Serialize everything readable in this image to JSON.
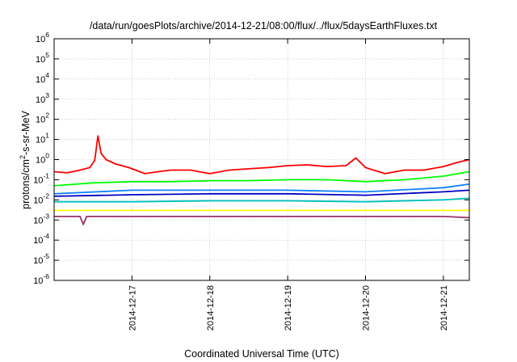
{
  "chart_data": {
    "type": "line",
    "title": "/data/run/goesPlots/archive/2014-12-21/08:00/flux/../flux/5daysEarthFluxes.txt",
    "xlabel": "Coordinated Universal Time (UTC)",
    "ylabel_parts": [
      "protons/cm",
      "2",
      "-s-sr-MeV"
    ],
    "y_scale": "log",
    "y_exponent_range": [
      -6,
      6
    ],
    "y_tick_exponents": [
      -6,
      -5,
      -4,
      -3,
      -2,
      -1,
      0,
      1,
      2,
      3,
      4,
      5,
      6
    ],
    "y_tick_base": "10",
    "x_range": [
      "2014-12-16T00:00",
      "2014-12-21T08:00"
    ],
    "x_ticks": [
      "2014-12-17",
      "2014-12-18",
      "2014-12-19",
      "2014-12-20",
      "2014-12-21"
    ],
    "grid": true,
    "legend": "none",
    "series": [
      {
        "color": "#ff0000",
        "points": [
          [
            "2014-12-16T00:00",
            0.25
          ],
          [
            "2014-12-16T04:00",
            0.22
          ],
          [
            "2014-12-16T08:00",
            0.3
          ],
          [
            "2014-12-16T11:00",
            0.4
          ],
          [
            "2014-12-16T12:30",
            0.9
          ],
          [
            "2014-12-16T13:30",
            15
          ],
          [
            "2014-12-16T14:30",
            2.0
          ],
          [
            "2014-12-16T16:00",
            1.0
          ],
          [
            "2014-12-16T19:00",
            0.6
          ],
          [
            "2014-12-16T23:00",
            0.4
          ],
          [
            "2014-12-17T04:00",
            0.2
          ],
          [
            "2014-12-17T08:00",
            0.25
          ],
          [
            "2014-12-17T12:00",
            0.3
          ],
          [
            "2014-12-17T18:00",
            0.3
          ],
          [
            "2014-12-18T00:00",
            0.2
          ],
          [
            "2014-12-18T06:00",
            0.3
          ],
          [
            "2014-12-18T12:00",
            0.35
          ],
          [
            "2014-12-18T18:00",
            0.4
          ],
          [
            "2014-12-19T00:00",
            0.5
          ],
          [
            "2014-12-19T06:00",
            0.55
          ],
          [
            "2014-12-19T12:00",
            0.45
          ],
          [
            "2014-12-19T18:00",
            0.5
          ],
          [
            "2014-12-19T21:00",
            1.2
          ],
          [
            "2014-12-20T00:00",
            0.4
          ],
          [
            "2014-12-20T06:00",
            0.2
          ],
          [
            "2014-12-20T12:00",
            0.3
          ],
          [
            "2014-12-20T18:00",
            0.3
          ],
          [
            "2014-12-21T00:00",
            0.45
          ],
          [
            "2014-12-21T04:00",
            0.7
          ],
          [
            "2014-12-21T08:00",
            1.0
          ]
        ]
      },
      {
        "color": "#00ff00",
        "points": [
          [
            "2014-12-16T00:00",
            0.05
          ],
          [
            "2014-12-16T12:00",
            0.07
          ],
          [
            "2014-12-17T00:00",
            0.08
          ],
          [
            "2014-12-17T12:00",
            0.08
          ],
          [
            "2014-12-18T00:00",
            0.09
          ],
          [
            "2014-12-18T12:00",
            0.09
          ],
          [
            "2014-12-19T00:00",
            0.1
          ],
          [
            "2014-12-19T12:00",
            0.1
          ],
          [
            "2014-12-20T00:00",
            0.08
          ],
          [
            "2014-12-20T12:00",
            0.1
          ],
          [
            "2014-12-21T00:00",
            0.15
          ],
          [
            "2014-12-21T08:00",
            0.25
          ]
        ]
      },
      {
        "color": "#00c0c0",
        "points": [
          [
            "2014-12-16T00:00",
            0.008
          ],
          [
            "2014-12-17T00:00",
            0.008
          ],
          [
            "2014-12-18T00:00",
            0.009
          ],
          [
            "2014-12-19T00:00",
            0.009
          ],
          [
            "2014-12-20T00:00",
            0.008
          ],
          [
            "2014-12-21T00:00",
            0.01
          ],
          [
            "2014-12-21T08:00",
            0.012
          ]
        ]
      },
      {
        "color": "#1080ff",
        "points": [
          [
            "2014-12-16T00:00",
            0.02
          ],
          [
            "2014-12-17T00:00",
            0.03
          ],
          [
            "2014-12-18T00:00",
            0.03
          ],
          [
            "2014-12-19T00:00",
            0.03
          ],
          [
            "2014-12-20T00:00",
            0.025
          ],
          [
            "2014-12-21T00:00",
            0.04
          ],
          [
            "2014-12-21T08:00",
            0.06
          ]
        ]
      },
      {
        "color": "#0000c0",
        "points": [
          [
            "2014-12-16T00:00",
            0.015
          ],
          [
            "2014-12-17T00:00",
            0.018
          ],
          [
            "2014-12-18T00:00",
            0.02
          ],
          [
            "2014-12-19T00:00",
            0.02
          ],
          [
            "2014-12-20T00:00",
            0.017
          ],
          [
            "2014-12-21T00:00",
            0.025
          ],
          [
            "2014-12-21T08:00",
            0.03
          ]
        ]
      },
      {
        "color": "#ffff00",
        "points": [
          [
            "2014-12-16T00:00",
            0.003
          ],
          [
            "2014-12-17T00:00",
            0.003
          ],
          [
            "2014-12-18T00:00",
            0.003
          ],
          [
            "2014-12-19T00:00",
            0.003
          ],
          [
            "2014-12-20T00:00",
            0.003
          ],
          [
            "2014-12-21T00:00",
            0.003
          ],
          [
            "2014-12-21T08:00",
            0.003
          ]
        ]
      },
      {
        "color": "#993366",
        "points": [
          [
            "2014-12-16T00:00",
            0.0015
          ],
          [
            "2014-12-16T08:00",
            0.0015
          ],
          [
            "2014-12-16T09:00",
            0.0006
          ],
          [
            "2014-12-16T10:00",
            0.0015
          ],
          [
            "2014-12-17T00:00",
            0.0015
          ],
          [
            "2014-12-18T00:00",
            0.0015
          ],
          [
            "2014-12-19T00:00",
            0.0015
          ],
          [
            "2014-12-20T00:00",
            0.0015
          ],
          [
            "2014-12-21T00:00",
            0.0015
          ],
          [
            "2014-12-21T08:00",
            0.0013
          ]
        ]
      }
    ]
  }
}
